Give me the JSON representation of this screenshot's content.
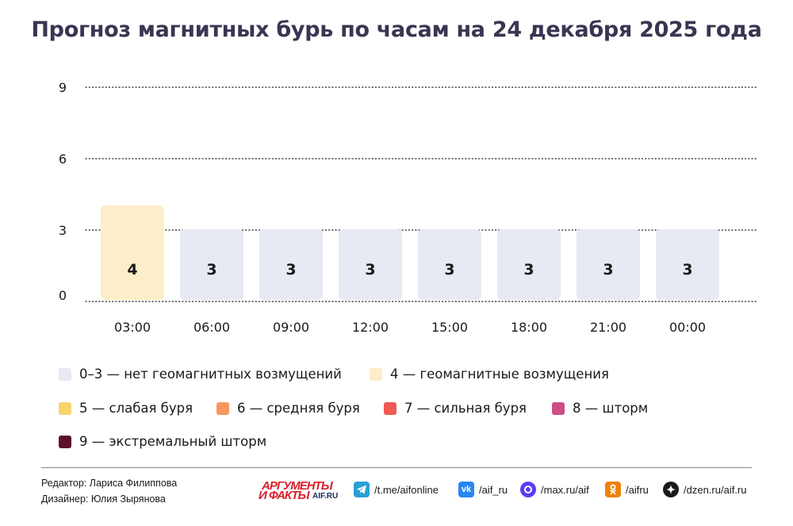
{
  "chart_data": {
    "type": "bar",
    "title": "Прогноз магнитных бурь по часам на 24 декабря 2025 года",
    "categories": [
      "03:00",
      "06:00",
      "09:00",
      "12:00",
      "15:00",
      "18:00",
      "21:00",
      "00:00"
    ],
    "values": [
      4,
      3,
      3,
      3,
      3,
      3,
      3,
      3
    ],
    "yticks": [
      0,
      3,
      6,
      9
    ],
    "ylim": [
      0,
      9
    ],
    "grid": "dotted horizontal",
    "bar_colors": {
      "0-3": "#e7e9f3",
      "4": "#fdeec9"
    }
  },
  "legend": [
    {
      "label": "0–3 — нет геомагнитных возмущений",
      "color": "#e7e9f3"
    },
    {
      "label": "4 — геомагнитные возмущения",
      "color": "#fdeec9"
    },
    {
      "label": "5 — слабая буря",
      "color": "#f9d46b"
    },
    {
      "label": "6 — средняя буря",
      "color": "#f6975e"
    },
    {
      "label": "7 — сильная буря",
      "color": "#ef5a55"
    },
    {
      "label": "8 — шторм",
      "color": "#cf4d87"
    },
    {
      "label": "9 — экстремальный шторм",
      "color": "#5c0f2c"
    }
  ],
  "credits": {
    "editor": "Редактор: Лариса Филиппова",
    "designer": "Дизайнер: Юлия Зырянова"
  },
  "brand": {
    "line1": "АРГУМЕНТЫ",
    "line2": "И ФАКТЫ",
    "site": "AIF.RU"
  },
  "socials": [
    {
      "icon": "telegram-icon",
      "text": "/t.me/aifonline",
      "color": "#2a9fd6"
    },
    {
      "icon": "vk-icon",
      "text": "/aif_ru",
      "color": "#2787f5"
    },
    {
      "icon": "max-icon",
      "text": "/max.ru/aif",
      "color": "#5b3df5"
    },
    {
      "icon": "odnoklassniki-icon",
      "text": "/aifru",
      "color": "#ee8208"
    },
    {
      "icon": "dzen-icon",
      "text": "/dzen.ru/aif.ru",
      "color": "#1a1a1a"
    }
  ]
}
